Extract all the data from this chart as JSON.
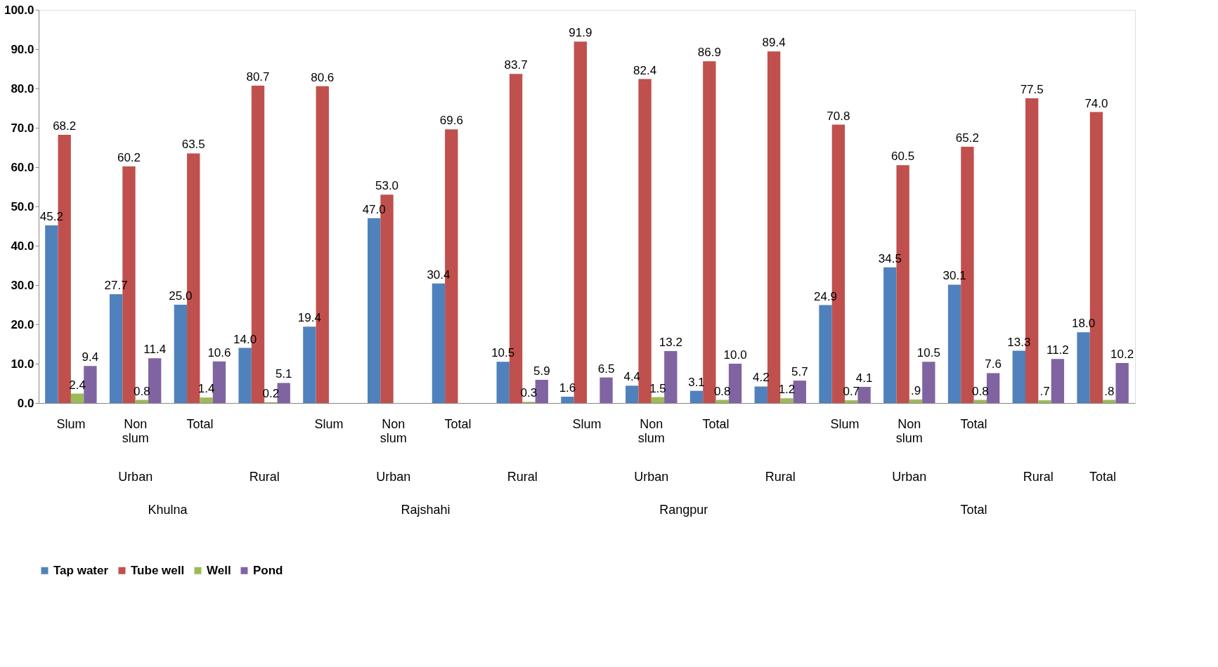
{
  "chart_data": {
    "type": "bar",
    "categories": [
      "Slum",
      "Non slum",
      "Total",
      null,
      "Slum",
      "Non slum",
      "Total",
      null,
      "Slum",
      "Non slum",
      "Total",
      null,
      "Slum",
      "Non slum",
      "Total",
      null,
      null
    ],
    "series": [
      {
        "name": "Tap water",
        "color": "#4f81bd",
        "values": [
          45.2,
          27.7,
          25.0,
          14.0,
          19.4,
          47.0,
          30.4,
          10.5,
          1.6,
          4.4,
          3.1,
          4.2,
          24.9,
          34.5,
          30.1,
          13.3,
          18.0
        ],
        "value_labels": [
          "45.2",
          "27.7",
          "25.0",
          "14.0",
          "19.4",
          "47.0",
          "30.4",
          "10.5",
          "1.6",
          "4.4",
          "3.1",
          "4.2",
          "24.9",
          "34.5",
          "30.1",
          "13.3",
          "18.0"
        ]
      },
      {
        "name": "Tube well",
        "color": "#c0504d",
        "values": [
          68.2,
          60.2,
          63.5,
          80.7,
          80.6,
          53.0,
          69.6,
          83.7,
          91.9,
          82.4,
          86.9,
          89.4,
          70.8,
          60.5,
          65.2,
          77.5,
          74.0
        ],
        "value_labels": [
          "68.2",
          "60.2",
          "63.5",
          "80.7",
          "80.6",
          "53.0",
          "69.6",
          "83.7",
          "91.9",
          "82.4",
          "86.9",
          "89.4",
          "70.8",
          "60.5",
          "65.2",
          "77.5",
          "74.0"
        ]
      },
      {
        "name": "Well",
        "color": "#9bbb59",
        "values": [
          2.4,
          0.8,
          1.4,
          0.2,
          0,
          0,
          0,
          0.3,
          0,
          1.5,
          0.8,
          1.2,
          0.7,
          0.9,
          0.8,
          0.7,
          0.8
        ],
        "value_labels": [
          "2.4",
          "0.8",
          "1.4",
          "0.2",
          null,
          null,
          null,
          "0.3",
          null,
          "1.5",
          "0.8",
          "1.2",
          "0.7",
          ".9",
          "0.8",
          ".7",
          ".8"
        ]
      },
      {
        "name": "Pond",
        "color": "#8064a2",
        "values": [
          9.4,
          11.4,
          10.6,
          5.1,
          0,
          0,
          0,
          5.9,
          6.5,
          13.2,
          10.0,
          5.7,
          4.1,
          10.5,
          7.6,
          11.2,
          10.2
        ],
        "value_labels": [
          "9.4",
          "11.4",
          "10.6",
          "5.1",
          null,
          null,
          null,
          "5.9",
          "6.5",
          "13.2",
          "10.0",
          "5.7",
          "4.1",
          "10.5",
          "7.6",
          "11.2",
          "10.2"
        ]
      }
    ],
    "ylim": [
      0,
      100
    ],
    "yticks": [
      {
        "value": 0,
        "label": "0.0"
      },
      {
        "value": 10,
        "label": "10.0"
      },
      {
        "value": 20,
        "label": "20.0"
      },
      {
        "value": 30,
        "label": "30.0"
      },
      {
        "value": 40,
        "label": "40.0"
      },
      {
        "value": 50,
        "label": "50.0"
      },
      {
        "value": 60,
        "label": "60.0"
      },
      {
        "value": 70,
        "label": "70.0"
      },
      {
        "value": 80,
        "label": "80.0"
      },
      {
        "value": 90,
        "label": "90.0"
      },
      {
        "value": 100,
        "label": "100.0"
      }
    ],
    "annotations": [
      "Urban",
      "Rural",
      "Urban",
      "Rural",
      "Urban",
      "Rural",
      "Urban",
      "Rural",
      "Total",
      "Khulna",
      "Rajshahi",
      "Rangpur",
      "Total"
    ],
    "grid": false,
    "legend": "bottom"
  }
}
